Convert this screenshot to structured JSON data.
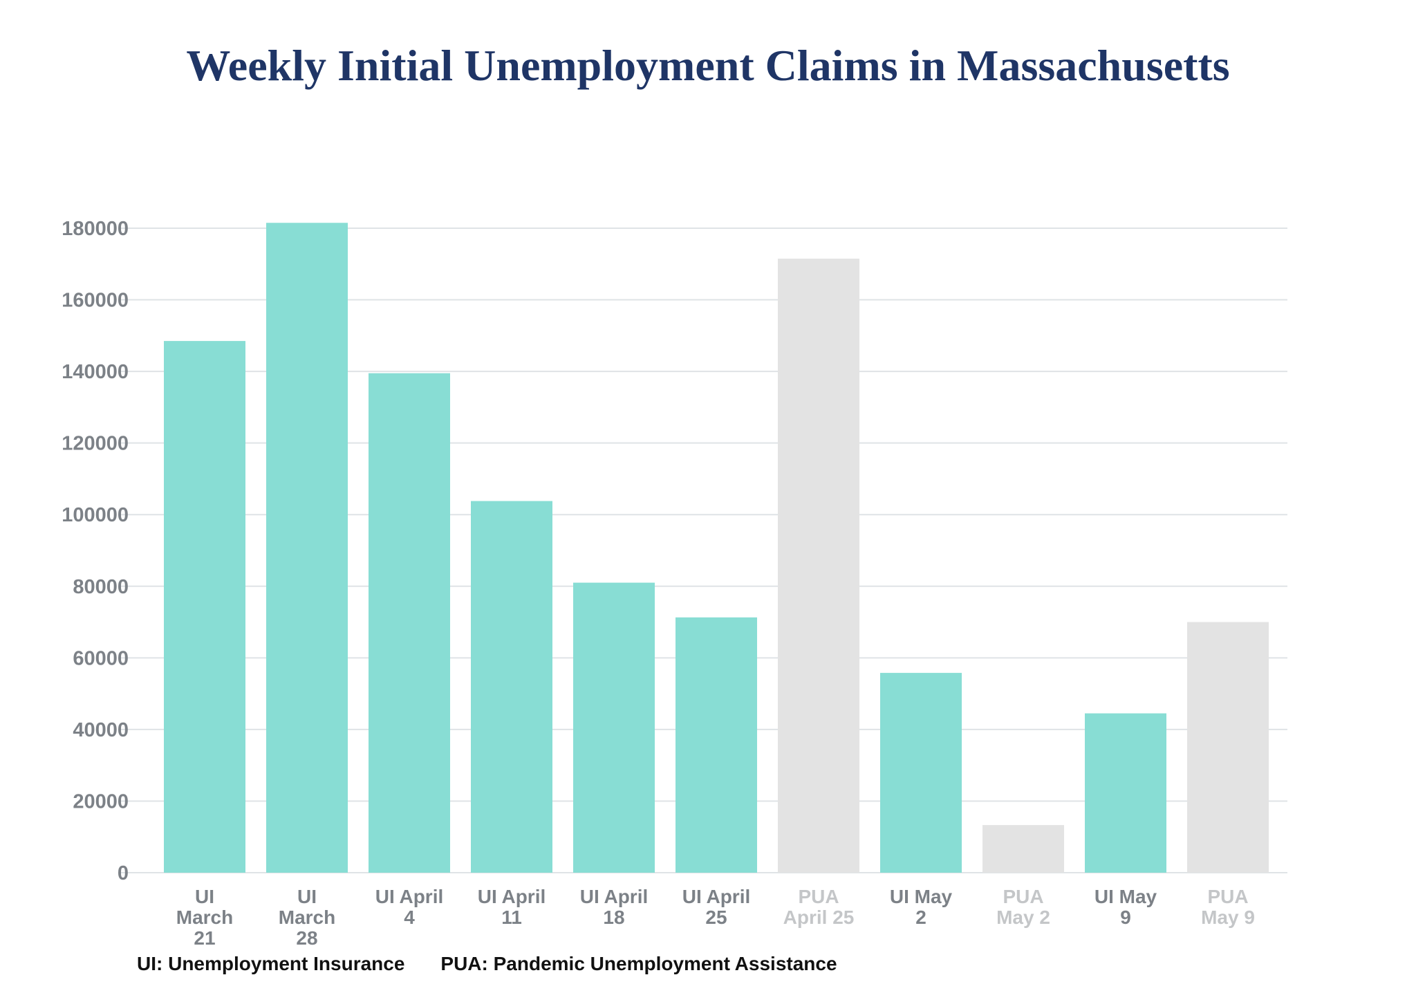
{
  "chart_data": {
    "type": "bar",
    "title": "Weekly Initial Unemployment Claims in Massachusetts",
    "xlabel": "",
    "ylabel": "",
    "ylim": [
      0,
      180000
    ],
    "yticks": [
      "0",
      "20000",
      "40000",
      "60000",
      "80000",
      "100000",
      "120000",
      "140000",
      "160000",
      "180000"
    ],
    "grid": true,
    "colors": {
      "UI": "#88ddd4",
      "PUA": "#e3e3e3",
      "ui_label": "#7c8187",
      "pua_label": "#c4c6c8",
      "gridline": "#dfe3e6",
      "title": "#1f3566"
    },
    "categories": [
      {
        "label": [
          "UI",
          "March",
          "21"
        ],
        "type": "UI",
        "value": 148500
      },
      {
        "label": [
          "UI",
          "March",
          "28"
        ],
        "type": "UI",
        "value": 181500
      },
      {
        "label": [
          "UI April",
          "4"
        ],
        "type": "UI",
        "value": 139500
      },
      {
        "label": [
          "UI April",
          "11"
        ],
        "type": "UI",
        "value": 103800
      },
      {
        "label": [
          "UI April",
          "18"
        ],
        "type": "UI",
        "value": 81000
      },
      {
        "label": [
          "UI April",
          "25"
        ],
        "type": "UI",
        "value": 71300
      },
      {
        "label": [
          "PUA",
          "April 25"
        ],
        "type": "PUA",
        "value": 171500
      },
      {
        "label": [
          "UI May",
          "2"
        ],
        "type": "UI",
        "value": 55800
      },
      {
        "label": [
          "PUA",
          "May 2"
        ],
        "type": "PUA",
        "value": 13300
      },
      {
        "label": [
          "UI May",
          "9"
        ],
        "type": "UI",
        "value": 44500
      },
      {
        "label": [
          "PUA",
          "May 9"
        ],
        "type": "PUA",
        "value": 70000
      }
    ]
  },
  "legend": {
    "ui": "UI: Unemployment Insurance",
    "pua": "PUA: Pandemic Unemployment Assistance"
  }
}
